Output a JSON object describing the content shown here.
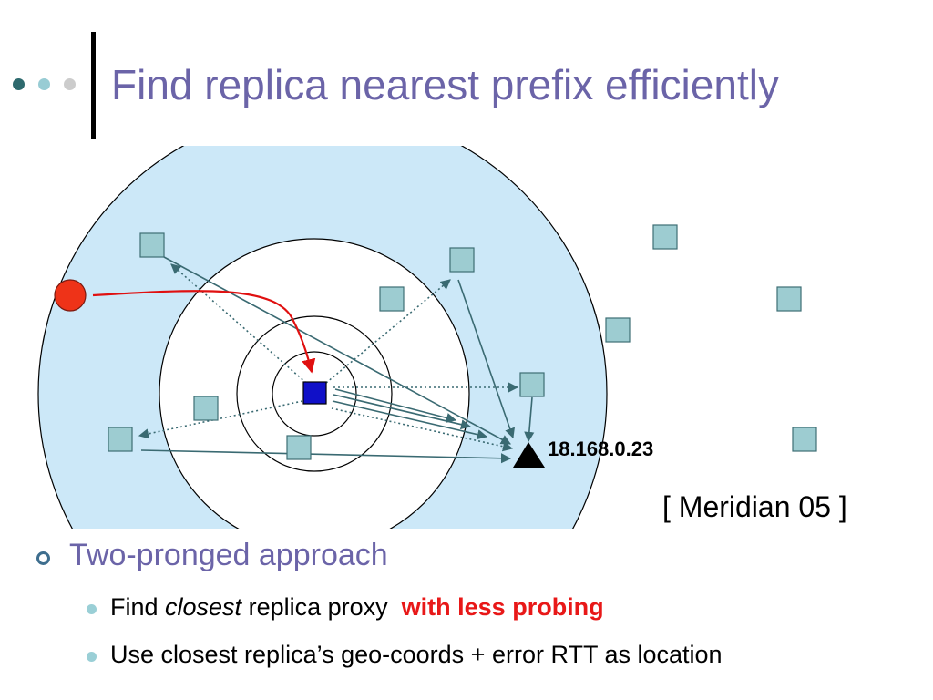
{
  "slide": {
    "title": "Find replica nearest prefix efficiently",
    "accent_color": "#6B64A8",
    "citation": "[ Meridian 05 ]",
    "bullets": [
      {
        "text": "Two-pronged approach",
        "children": [
          {
            "prefix": "Find ",
            "emphasis": "closest",
            "middle": " replica proxy  ",
            "highlight": "with less probing",
            "highlight_color": "#e81818"
          },
          {
            "text": "Use closest replica’s geo-coords + error RTT as location"
          }
        ]
      }
    ]
  },
  "diagram": {
    "target_label": "18.168.0.23",
    "colors": {
      "ring_fill": "#CCE8F8",
      "replica_fill": "#9DCCD1",
      "center_fill": "#1010C8",
      "client_fill": "#EE3318",
      "arrow": "#3A6A72",
      "client_arrow": "#E01010"
    }
  }
}
